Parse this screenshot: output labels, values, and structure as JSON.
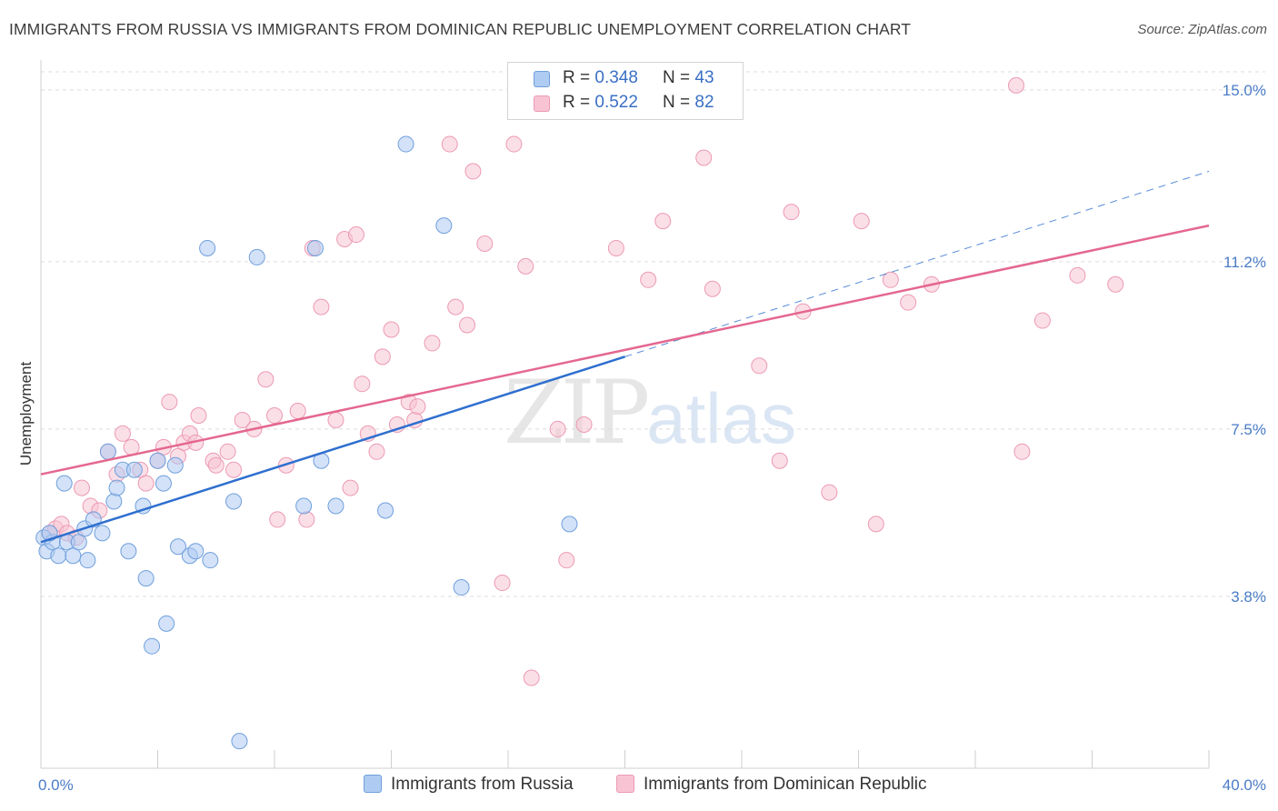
{
  "title": "IMMIGRANTS FROM RUSSIA VS IMMIGRANTS FROM DOMINICAN REPUBLIC UNEMPLOYMENT CORRELATION CHART",
  "source": "Source: ZipAtlas.com",
  "watermark": {
    "zip": "ZIP",
    "atlas": "atlas"
  },
  "legend": {
    "russia": {
      "r_label": "R =",
      "r_value": "0.348",
      "n_label": "N =",
      "n_value": "43"
    },
    "dominican": {
      "r_label": "R =",
      "r_value": "0.522",
      "n_label": "N =",
      "n_value": "82"
    }
  },
  "colors": {
    "russia_fill": "#aecbf2",
    "russia_stroke": "#6f9fdc",
    "russia_line": "#2f6fcf",
    "dominican_fill": "#f8c4d4",
    "dominican_stroke": "#ec9ab4",
    "dominican_line": "#e4678f",
    "grid": "#dcdcdc",
    "tick_text": "#4a7cc7"
  },
  "chart_data": {
    "type": "scatter",
    "title": "IMMIGRANTS FROM RUSSIA VS IMMIGRANTS FROM DOMINICAN REPUBLIC UNEMPLOYMENT CORRELATION CHART",
    "xlabel": "",
    "ylabel": "Unemployment",
    "xlim": [
      0,
      40
    ],
    "ylim": [
      0,
      15.5
    ],
    "x_tick_labels": [
      "0.0%",
      "40.0%"
    ],
    "y_ticks": [
      3.8,
      7.5,
      11.2,
      15.0
    ],
    "y_tick_labels": [
      "3.8%",
      "7.5%",
      "11.2%",
      "15.0%"
    ],
    "grid": true,
    "legend_position": "top-center",
    "series": [
      {
        "name": "Immigrants from Russia",
        "trend": {
          "x0": 0,
          "y0": 5.0,
          "x1": 20,
          "y1": 9.1,
          "dashed_to_x": 40,
          "dashed_to_y": 13.2
        },
        "points": [
          [
            0.1,
            5.1
          ],
          [
            0.2,
            4.8
          ],
          [
            0.4,
            5.0
          ],
          [
            0.6,
            4.7
          ],
          [
            0.8,
            6.3
          ],
          [
            0.9,
            5.0
          ],
          [
            1.1,
            4.7
          ],
          [
            1.3,
            5.0
          ],
          [
            1.5,
            5.3
          ],
          [
            1.6,
            4.6
          ],
          [
            1.8,
            5.5
          ],
          [
            2.1,
            5.2
          ],
          [
            2.3,
            7.0
          ],
          [
            2.5,
            5.9
          ],
          [
            2.6,
            6.2
          ],
          [
            2.8,
            6.6
          ],
          [
            3.0,
            4.8
          ],
          [
            3.2,
            6.6
          ],
          [
            3.5,
            5.8
          ],
          [
            3.6,
            4.2
          ],
          [
            3.8,
            2.7
          ],
          [
            4.0,
            6.8
          ],
          [
            4.2,
            6.3
          ],
          [
            4.3,
            3.2
          ],
          [
            4.6,
            6.7
          ],
          [
            4.7,
            4.9
          ],
          [
            5.1,
            4.7
          ],
          [
            5.3,
            4.8
          ],
          [
            5.8,
            4.6
          ],
          [
            5.7,
            11.5
          ],
          [
            6.6,
            5.9
          ],
          [
            6.8,
            0.6
          ],
          [
            7.4,
            11.3
          ],
          [
            9.0,
            5.8
          ],
          [
            9.4,
            11.5
          ],
          [
            9.6,
            6.8
          ],
          [
            10.1,
            5.8
          ],
          [
            11.8,
            5.7
          ],
          [
            12.5,
            13.8
          ],
          [
            13.8,
            12.0
          ],
          [
            14.4,
            4.0
          ],
          [
            18.1,
            5.4
          ],
          [
            0.3,
            5.2
          ]
        ]
      },
      {
        "name": "Immigrants from Dominican Republic",
        "trend": {
          "x0": 0,
          "y0": 6.5,
          "x1": 40,
          "y1": 12.0
        },
        "points": [
          [
            0.3,
            5.2
          ],
          [
            0.5,
            5.3
          ],
          [
            0.7,
            5.4
          ],
          [
            0.9,
            5.2
          ],
          [
            1.2,
            5.1
          ],
          [
            1.4,
            6.2
          ],
          [
            1.7,
            5.8
          ],
          [
            2.0,
            5.7
          ],
          [
            2.3,
            7.0
          ],
          [
            2.6,
            6.5
          ],
          [
            2.8,
            7.4
          ],
          [
            3.1,
            7.1
          ],
          [
            3.4,
            6.6
          ],
          [
            3.6,
            6.3
          ],
          [
            4.0,
            6.8
          ],
          [
            4.2,
            7.1
          ],
          [
            4.4,
            8.1
          ],
          [
            4.7,
            6.9
          ],
          [
            4.9,
            7.2
          ],
          [
            5.1,
            7.4
          ],
          [
            5.3,
            7.2
          ],
          [
            5.4,
            7.8
          ],
          [
            5.9,
            6.8
          ],
          [
            6.0,
            6.7
          ],
          [
            6.4,
            7.0
          ],
          [
            6.6,
            6.6
          ],
          [
            6.9,
            7.7
          ],
          [
            7.3,
            7.5
          ],
          [
            7.7,
            8.6
          ],
          [
            8.0,
            7.8
          ],
          [
            8.1,
            5.5
          ],
          [
            8.4,
            6.7
          ],
          [
            8.8,
            7.9
          ],
          [
            9.1,
            5.5
          ],
          [
            9.3,
            11.5
          ],
          [
            9.6,
            10.2
          ],
          [
            10.1,
            7.7
          ],
          [
            10.4,
            11.7
          ],
          [
            10.8,
            11.8
          ],
          [
            10.6,
            6.2
          ],
          [
            11.0,
            8.5
          ],
          [
            11.2,
            7.4
          ],
          [
            11.5,
            7.0
          ],
          [
            11.7,
            9.1
          ],
          [
            12.0,
            9.7
          ],
          [
            12.2,
            7.6
          ],
          [
            12.6,
            8.1
          ],
          [
            12.8,
            7.7
          ],
          [
            12.9,
            8.0
          ],
          [
            13.4,
            9.4
          ],
          [
            14.0,
            13.8
          ],
          [
            14.2,
            10.2
          ],
          [
            14.6,
            9.8
          ],
          [
            14.8,
            13.2
          ],
          [
            15.2,
            11.6
          ],
          [
            15.8,
            4.1
          ],
          [
            16.2,
            13.8
          ],
          [
            16.6,
            11.1
          ],
          [
            16.8,
            2.0
          ],
          [
            17.7,
            7.5
          ],
          [
            18.0,
            4.6
          ],
          [
            18.6,
            7.6
          ],
          [
            19.7,
            11.5
          ],
          [
            20.8,
            10.8
          ],
          [
            21.3,
            12.1
          ],
          [
            22.7,
            13.5
          ],
          [
            23.0,
            10.6
          ],
          [
            24.6,
            8.9
          ],
          [
            25.3,
            6.8
          ],
          [
            25.7,
            12.3
          ],
          [
            26.1,
            10.1
          ],
          [
            27.0,
            6.1
          ],
          [
            28.1,
            12.1
          ],
          [
            28.6,
            5.4
          ],
          [
            29.1,
            10.8
          ],
          [
            29.7,
            10.3
          ],
          [
            30.5,
            10.7
          ],
          [
            33.4,
            15.1
          ],
          [
            33.6,
            7.0
          ],
          [
            34.3,
            9.9
          ],
          [
            35.5,
            10.9
          ],
          [
            36.8,
            10.7
          ]
        ]
      }
    ]
  },
  "bottom_legend": {
    "russia_label": "Immigrants from Russia",
    "dominican_label": "Immigrants from Dominican Republic"
  }
}
